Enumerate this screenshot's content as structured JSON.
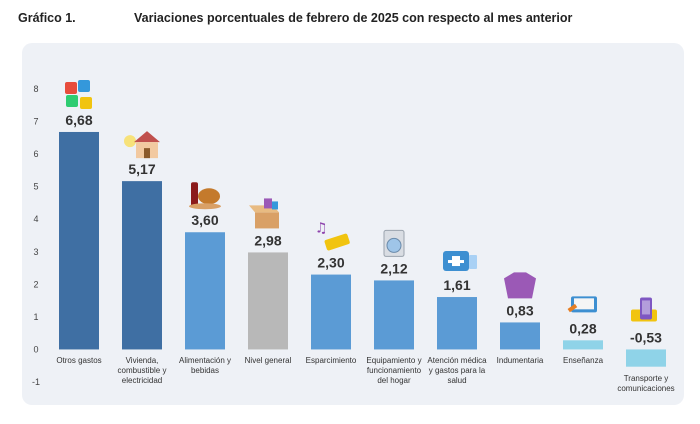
{
  "header": {
    "figure_label": "Gráfico 1.",
    "title": "Variaciones porcentuales de febrero de 2025 con respecto al mes anterior"
  },
  "colors": {
    "dark_blue": "#3f6fa3",
    "light_blue": "#5b9bd5",
    "gray": "#b8b8b8",
    "cyan": "#8fd3e8",
    "panel_bg": "#eef1f6"
  },
  "chart_data": {
    "type": "bar",
    "title": "Variaciones porcentuales de febrero de 2025 con respecto al mes anterior",
    "xlabel": "",
    "ylabel": "",
    "ylim": [
      -1,
      8
    ],
    "yticks": [
      -1,
      0,
      1,
      2,
      3,
      4,
      5,
      6,
      7,
      8
    ],
    "grid": false,
    "categories": [
      "Otros gastos",
      "Vivienda, combustible y electricidad",
      "Alimentación y bebidas",
      "Nivel general",
      "Esparcimiento",
      "Equipamiento y funcionamiento del hogar",
      "Atención médica y gastos para la salud",
      "Indumentaria",
      "Enseñanza",
      "Transporte y comunicaciones"
    ],
    "category_lines": [
      [
        "Otros gastos"
      ],
      [
        "Vivienda,",
        "combustible y",
        "electricidad"
      ],
      [
        "Alimentación y",
        "bebidas"
      ],
      [
        "Nivel general"
      ],
      [
        "Esparcimiento"
      ],
      [
        "Equipamiento y",
        "funcionamiento",
        "del hogar"
      ],
      [
        "Atención médica",
        "y gastos para la",
        "salud"
      ],
      [
        "Indumentaria"
      ],
      [
        "Enseñanza"
      ],
      [
        "Transporte y",
        "comunicaciones"
      ]
    ],
    "values": [
      6.68,
      5.17,
      3.6,
      2.98,
      2.3,
      2.12,
      1.61,
      0.83,
      0.28,
      -0.53
    ],
    "value_labels": [
      "6,68",
      "5,17",
      "3,60",
      "2,98",
      "2,30",
      "2,12",
      "1,61",
      "0,83",
      "0,28",
      "-0,53"
    ],
    "bar_colors": [
      "#3f6fa3",
      "#3f6fa3",
      "#5b9bd5",
      "#b8b8b8",
      "#5b9bd5",
      "#5b9bd5",
      "#5b9bd5",
      "#5b9bd5",
      "#8fd3e8",
      "#8fd3e8"
    ],
    "icons": [
      "puzzle-icon",
      "house-icon",
      "food-icon",
      "box-icon",
      "ticket-icon",
      "washing-machine-icon",
      "medical-kit-icon",
      "clothing-icon",
      "book-icon",
      "phone-bus-icon"
    ]
  }
}
